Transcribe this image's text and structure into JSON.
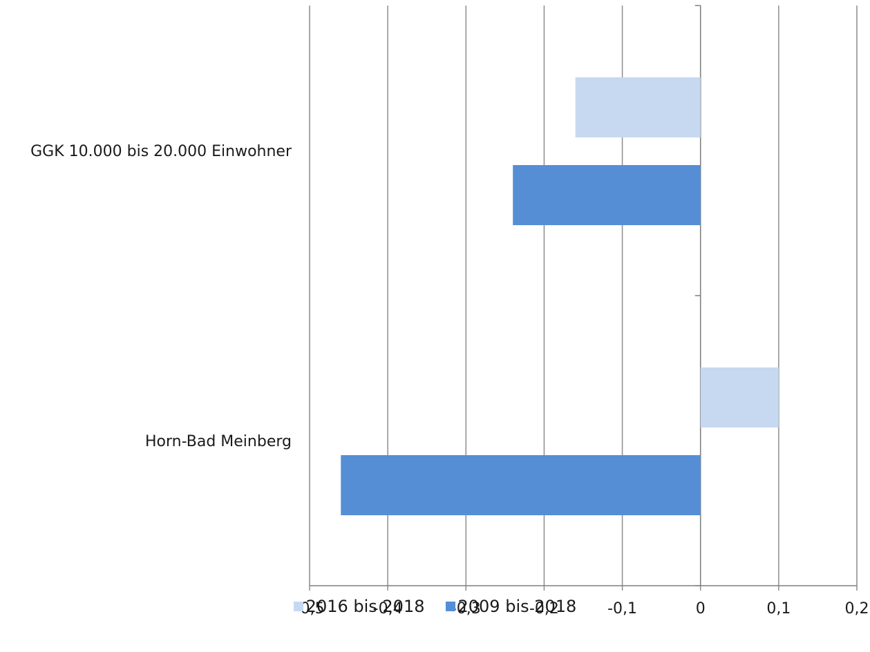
{
  "chart_data": {
    "type": "bar",
    "orientation": "horizontal",
    "categories": [
      "GGK 10.000 bis 20.000 Einwohner",
      "Horn-Bad Meinberg"
    ],
    "series": [
      {
        "name": "2016 bis 2018",
        "color": "#c6d9f1",
        "values": [
          -0.16,
          0.1
        ]
      },
      {
        "name": "2009 bis 2018",
        "color": "#558ed5",
        "values": [
          -0.24,
          -0.46
        ]
      }
    ],
    "xlim": [
      -0.5,
      0.2
    ],
    "xticks": [
      -0.5,
      -0.4,
      -0.3,
      -0.2,
      -0.1,
      0,
      0.1,
      0.2
    ],
    "tick_labels": [
      "-0,5",
      "-0,4",
      "-0,3",
      "-0,2",
      "-0,1",
      "0",
      "0,1",
      "0,2"
    ],
    "grid": true,
    "legend_position": "bottom",
    "title": "",
    "xlabel": "",
    "ylabel": ""
  }
}
